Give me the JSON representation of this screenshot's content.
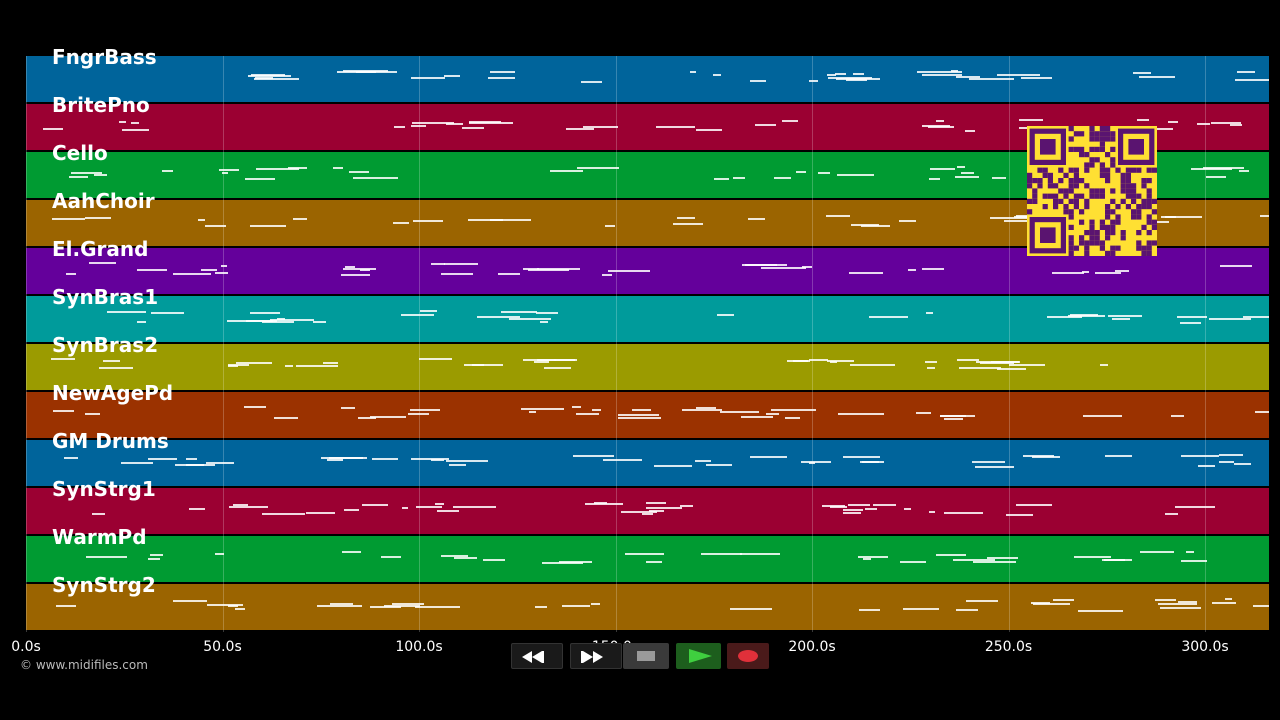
{
  "tracks": [
    {
      "name": "FngrBass",
      "color": "#00649b"
    },
    {
      "name": "BritePno",
      "color": "#9b0032"
    },
    {
      "name": "Cello",
      "color": "#009b32"
    },
    {
      "name": "AahChoir",
      "color": "#9b6400"
    },
    {
      "name": "El.Grand",
      "color": "#64009b"
    },
    {
      "name": "SynBras1",
      "color": "#009b9b"
    },
    {
      "name": "SynBras2",
      "color": "#9b9b00"
    },
    {
      "name": "NewAgePd",
      "color": "#9b3200"
    },
    {
      "name": "GM Drums",
      "color": "#00649b"
    },
    {
      "name": "SynStrg1",
      "color": "#9b0032"
    },
    {
      "name": "WarmPd",
      "color": "#009b32"
    },
    {
      "name": "SynStrg2",
      "color": "#9b6400"
    }
  ],
  "time_axis": {
    "ticks": [
      "0.0s",
      "50.0s",
      "100.0s",
      "150.0s",
      "200.0s",
      "250.0s",
      "300.0s"
    ],
    "step_seconds": 50,
    "max_seconds": 316
  },
  "copyright": "© www.midifiles.com",
  "transport": {
    "rewind_icon": "rewind-icon",
    "fast_forward_icon": "fast-forward-icon",
    "stop_icon": "stop-icon",
    "play_icon": "play-icon",
    "record_icon": "record-icon"
  },
  "qr_icon": "qr-code-icon"
}
